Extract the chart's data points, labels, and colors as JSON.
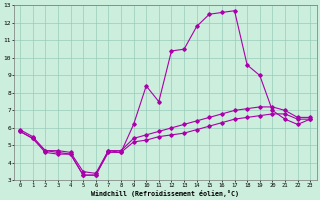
{
  "xlabel": "Windchill (Refroidissement éolien,°C)",
  "background_color": "#cceedd",
  "grid_color": "#99ccbb",
  "line_color": "#aa00aa",
  "xlim": [
    -0.5,
    23.5
  ],
  "ylim": [
    3,
    13
  ],
  "xticks": [
    0,
    1,
    2,
    3,
    4,
    5,
    6,
    7,
    8,
    9,
    10,
    11,
    12,
    13,
    14,
    15,
    16,
    17,
    18,
    19,
    20,
    21,
    22,
    23
  ],
  "yticks": [
    3,
    4,
    5,
    6,
    7,
    8,
    9,
    10,
    11,
    12,
    13
  ],
  "line1_x": [
    0,
    1,
    2,
    3,
    4,
    5,
    6,
    7,
    8,
    9,
    10,
    11,
    12,
    13,
    14,
    15,
    16,
    17,
    18,
    19,
    20,
    21,
    22,
    23
  ],
  "line1_y": [
    5.8,
    5.4,
    4.6,
    4.5,
    4.5,
    3.3,
    3.3,
    4.7,
    4.6,
    6.2,
    8.4,
    7.5,
    10.4,
    10.5,
    11.8,
    12.5,
    12.6,
    12.7,
    9.6,
    9.0,
    7.0,
    6.5,
    6.2,
    6.5
  ],
  "line2_x": [
    0,
    1,
    2,
    3,
    4,
    5,
    6,
    7,
    8,
    9,
    10,
    11,
    12,
    13,
    14,
    15,
    16,
    17,
    18,
    19,
    20,
    21,
    22,
    23
  ],
  "line2_y": [
    5.8,
    5.4,
    4.7,
    4.6,
    4.5,
    3.3,
    3.3,
    4.6,
    4.6,
    5.2,
    5.3,
    5.5,
    5.6,
    5.7,
    5.9,
    6.1,
    6.3,
    6.5,
    6.6,
    6.7,
    6.8,
    6.8,
    6.5,
    6.5
  ],
  "line3_x": [
    0,
    1,
    2,
    3,
    4,
    5,
    6,
    7,
    8,
    9,
    10,
    11,
    12,
    13,
    14,
    15,
    16,
    17,
    18,
    19,
    20,
    21,
    22,
    23
  ],
  "line3_y": [
    5.9,
    5.5,
    4.7,
    4.7,
    4.6,
    3.5,
    3.4,
    4.7,
    4.7,
    5.4,
    5.6,
    5.8,
    6.0,
    6.2,
    6.4,
    6.6,
    6.8,
    7.0,
    7.1,
    7.2,
    7.2,
    7.0,
    6.6,
    6.6
  ]
}
